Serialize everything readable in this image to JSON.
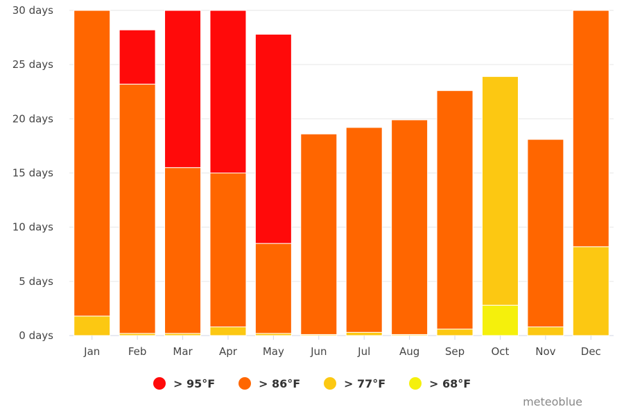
{
  "chart_data": {
    "type": "bar",
    "stacked": true,
    "categories": [
      "Jan",
      "Feb",
      "Mar",
      "Apr",
      "May",
      "Jun",
      "Jul",
      "Aug",
      "Sep",
      "Oct",
      "Nov",
      "Dec"
    ],
    "ylim": [
      0,
      30
    ],
    "yticks": [
      0,
      5,
      10,
      15,
      20,
      25,
      30
    ],
    "ytick_labels": [
      "0 days",
      "5 days",
      "10 days",
      "15 days",
      "20 days",
      "25 days",
      "30 days"
    ],
    "grid": true,
    "legend_position": "bottom",
    "series": [
      {
        "name": "> 68°F",
        "color": "#f5f00c",
        "values": [
          0,
          0,
          0,
          0,
          0,
          0,
          0,
          0,
          0,
          2.8,
          0,
          0
        ]
      },
      {
        "name": "> 77°F",
        "color": "#fcc812",
        "values": [
          1.8,
          0.2,
          0.2,
          0.8,
          0.2,
          0.1,
          0.3,
          0.1,
          0.6,
          21.1,
          0.8,
          8.2
        ]
      },
      {
        "name": "> 86°F",
        "color": "#ff6600",
        "values": [
          29.2,
          23.0,
          15.3,
          14.2,
          8.3,
          18.5,
          18.9,
          19.8,
          22.0,
          0,
          17.3,
          22.8
        ]
      },
      {
        "name": "> 95°F",
        "color": "#ff0a0a",
        "values": [
          0,
          5.0,
          14.5,
          15.0,
          19.3,
          0,
          0,
          0,
          0,
          0,
          0,
          0
        ]
      }
    ],
    "segments_top_clip": 30
  },
  "legend_order": [
    "> 95°F",
    "> 86°F",
    "> 77°F",
    "> 68°F"
  ],
  "credit": "meteoblue"
}
